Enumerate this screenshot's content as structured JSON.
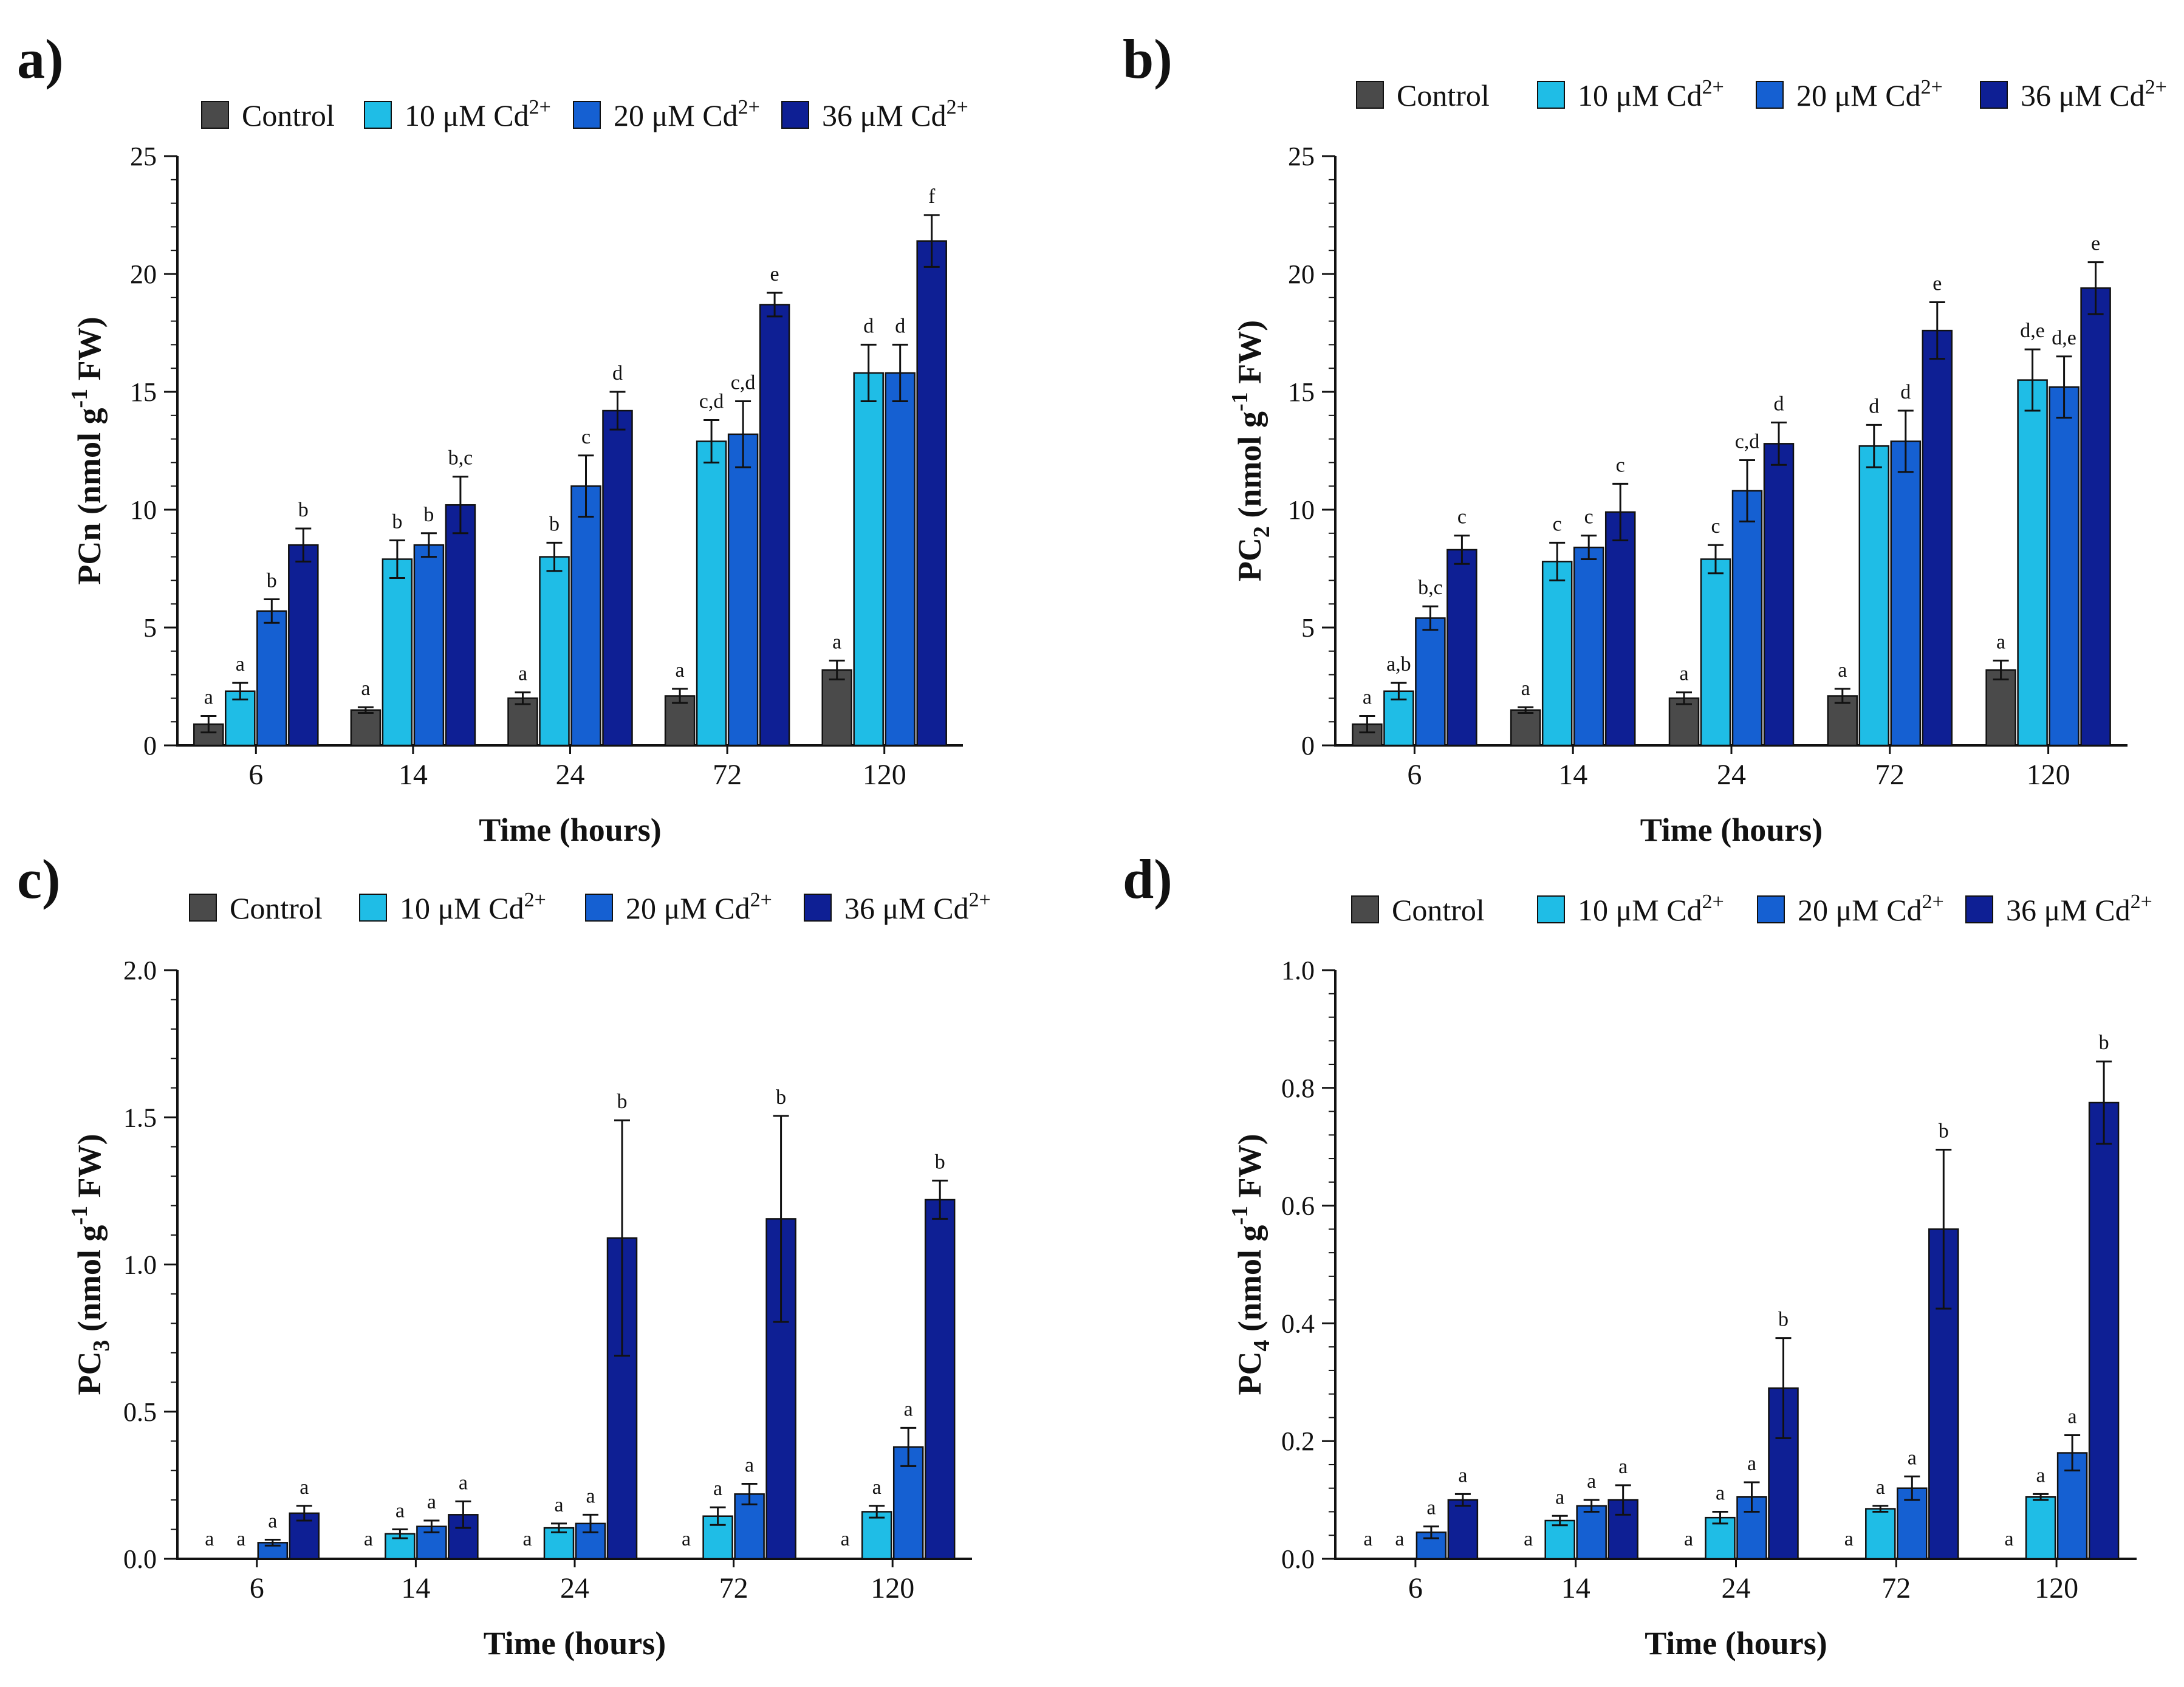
{
  "legend": [
    {
      "label": "Control",
      "super": "",
      "color": "#4a4a4a"
    },
    {
      "label": "10 μM Cd",
      "super": "2+",
      "color": "#1fbde6"
    },
    {
      "label": "20 μM Cd",
      "super": "2+",
      "color": "#1560d2"
    },
    {
      "label": "36 μM Cd",
      "super": "2+",
      "color": "#0e1f94"
    }
  ],
  "chart_data": [
    {
      "id": "a",
      "panel_label": "a)",
      "type": "bar",
      "xlabel": "Time (hours)",
      "ylabel": {
        "main": "PCn (nmol g",
        "sup": "-1",
        "tail": " FW)",
        "sub": ""
      },
      "ylim": [
        0,
        25
      ],
      "yticks": [
        0,
        5,
        10,
        15,
        20,
        25
      ],
      "ytick_labels": [
        "0",
        "5",
        "10",
        "15",
        "20",
        "25"
      ],
      "categories": [
        "6",
        "14",
        "24",
        "72",
        "120"
      ],
      "series": [
        {
          "name": "Control",
          "values": [
            0.9,
            1.5,
            2.0,
            2.1,
            3.2
          ],
          "errors": [
            0.35,
            0.12,
            0.25,
            0.3,
            0.4
          ],
          "labels": [
            "a",
            "a",
            "a",
            "a",
            "a"
          ]
        },
        {
          "name": "10 μM Cd2+",
          "values": [
            2.3,
            7.9,
            8.0,
            12.9,
            15.8
          ],
          "errors": [
            0.35,
            0.8,
            0.6,
            0.9,
            1.2
          ],
          "labels": [
            "a",
            "b",
            "b",
            "c,d",
            "d"
          ]
        },
        {
          "name": "20 μM Cd2+",
          "values": [
            5.7,
            8.5,
            11.0,
            13.2,
            15.8
          ],
          "errors": [
            0.5,
            0.5,
            1.3,
            1.4,
            1.2
          ],
          "labels": [
            "b",
            "b",
            "c",
            "c,d",
            "d"
          ]
        },
        {
          "name": "36 μM Cd2+",
          "values": [
            8.5,
            10.2,
            14.2,
            18.7,
            21.4
          ],
          "errors": [
            0.7,
            1.2,
            0.8,
            0.5,
            1.1
          ],
          "labels": [
            "b",
            "b,c",
            "d",
            "e",
            "f"
          ]
        }
      ]
    },
    {
      "id": "b",
      "panel_label": "b)",
      "type": "bar",
      "xlabel": "Time (hours)",
      "ylabel": {
        "main": "PC",
        "sub": "2",
        "mid": " (nmol g",
        "sup": "-1",
        "tail": " FW)"
      },
      "ylim": [
        0,
        25
      ],
      "yticks": [
        0,
        5,
        10,
        15,
        20,
        25
      ],
      "ytick_labels": [
        "0",
        "5",
        "10",
        "15",
        "20",
        "25"
      ],
      "categories": [
        "6",
        "14",
        "24",
        "72",
        "120"
      ],
      "series": [
        {
          "name": "Control",
          "values": [
            0.9,
            1.5,
            2.0,
            2.1,
            3.2
          ],
          "errors": [
            0.35,
            0.12,
            0.25,
            0.3,
            0.4
          ],
          "labels": [
            "a",
            "a",
            "a",
            "a",
            "a"
          ]
        },
        {
          "name": "10 μM Cd2+",
          "values": [
            2.3,
            7.8,
            7.9,
            12.7,
            15.5
          ],
          "errors": [
            0.35,
            0.8,
            0.6,
            0.9,
            1.3
          ],
          "labels": [
            "a,b",
            "c",
            "c",
            "d",
            "d,e"
          ]
        },
        {
          "name": "20 μM Cd2+",
          "values": [
            5.4,
            8.4,
            10.8,
            12.9,
            15.2
          ],
          "errors": [
            0.5,
            0.5,
            1.3,
            1.3,
            1.3
          ],
          "labels": [
            "b,c",
            "c",
            "c,d",
            "d",
            "d,e"
          ]
        },
        {
          "name": "36 μM Cd2+",
          "values": [
            8.3,
            9.9,
            12.8,
            17.6,
            19.4
          ],
          "errors": [
            0.6,
            1.2,
            0.9,
            1.2,
            1.1
          ],
          "labels": [
            "c",
            "c",
            "d",
            "e",
            "e"
          ]
        }
      ]
    },
    {
      "id": "c",
      "panel_label": "c)",
      "type": "bar",
      "xlabel": "Time (hours)",
      "ylabel": {
        "main": "PC",
        "sub": "3",
        "mid": " (nmol g",
        "sup": "-1",
        "tail": " FW)"
      },
      "ylim": [
        0,
        2.0
      ],
      "yticks": [
        0,
        0.5,
        1.0,
        1.5,
        2.0
      ],
      "ytick_labels": [
        "0.0",
        "0.5",
        "1.0",
        "1.5",
        "2.0"
      ],
      "categories": [
        "6",
        "14",
        "24",
        "72",
        "120"
      ],
      "series": [
        {
          "name": "Control",
          "values": [
            0,
            0,
            0,
            0,
            0
          ],
          "errors": [
            0,
            0,
            0,
            0,
            0
          ],
          "labels": [
            "a",
            "a",
            "a",
            "a",
            "a"
          ]
        },
        {
          "name": "10 μM Cd2+",
          "values": [
            0,
            0.085,
            0.105,
            0.145,
            0.16
          ],
          "errors": [
            0,
            0.015,
            0.015,
            0.03,
            0.02
          ],
          "labels": [
            "a",
            "a",
            "a",
            "a",
            "a"
          ]
        },
        {
          "name": "20 μM Cd2+",
          "values": [
            0.055,
            0.11,
            0.12,
            0.22,
            0.38
          ],
          "errors": [
            0.01,
            0.02,
            0.03,
            0.035,
            0.065
          ],
          "labels": [
            "a",
            "a",
            "a",
            "a",
            "a"
          ]
        },
        {
          "name": "36 μM Cd2+",
          "values": [
            0.155,
            0.15,
            1.09,
            1.155,
            1.22
          ],
          "errors": [
            0.025,
            0.045,
            0.4,
            0.35,
            0.065
          ],
          "labels": [
            "a",
            "a",
            "b",
            "b",
            "b"
          ]
        }
      ]
    },
    {
      "id": "d",
      "panel_label": "d)",
      "type": "bar",
      "xlabel": "Time (hours)",
      "ylabel": {
        "main": "PC",
        "sub": "4",
        "mid": " (nmol g",
        "sup": "-1",
        "tail": " FW)"
      },
      "ylim": [
        0,
        1.0
      ],
      "yticks": [
        0,
        0.2,
        0.4,
        0.6,
        0.8,
        1.0
      ],
      "ytick_labels": [
        "0.0",
        "0.2",
        "0.4",
        "0.6",
        "0.8",
        "1.0"
      ],
      "categories": [
        "6",
        "14",
        "24",
        "72",
        "120"
      ],
      "series": [
        {
          "name": "Control",
          "values": [
            0,
            0,
            0,
            0,
            0
          ],
          "errors": [
            0,
            0,
            0,
            0,
            0
          ],
          "labels": [
            "a",
            "a",
            "a",
            "a",
            "a"
          ]
        },
        {
          "name": "10 μM Cd2+",
          "values": [
            0,
            0.065,
            0.07,
            0.085,
            0.105
          ],
          "errors": [
            0,
            0.008,
            0.01,
            0.005,
            0.005
          ],
          "labels": [
            "a",
            "a",
            "a",
            "a",
            "a"
          ]
        },
        {
          "name": "20 μM Cd2+",
          "values": [
            0.045,
            0.09,
            0.105,
            0.12,
            0.18
          ],
          "errors": [
            0.01,
            0.01,
            0.025,
            0.02,
            0.03
          ],
          "labels": [
            "a",
            "a",
            "a",
            "a",
            "a"
          ]
        },
        {
          "name": "36 μM Cd2+",
          "values": [
            0.1,
            0.1,
            0.29,
            0.56,
            0.775
          ],
          "errors": [
            0.01,
            0.025,
            0.085,
            0.135,
            0.07
          ],
          "labels": [
            "a",
            "a",
            "b",
            "b",
            "b"
          ]
        }
      ]
    }
  ]
}
